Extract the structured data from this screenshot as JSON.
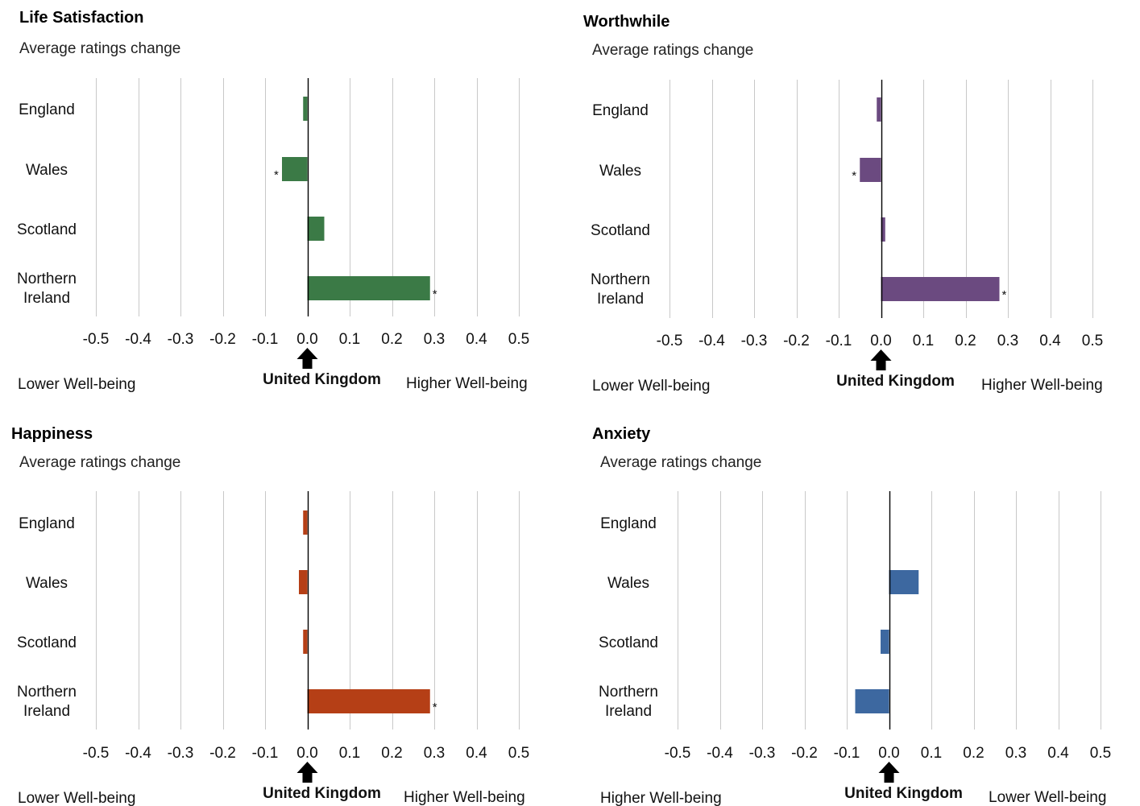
{
  "chart_data": [
    {
      "type": "bar",
      "orientation": "horizontal",
      "title": "Life Satisfaction",
      "subtitle": "Average ratings change",
      "categories": [
        "England",
        "Wales",
        "Scotland",
        "Northern Ireland"
      ],
      "values": [
        -0.01,
        -0.06,
        0.04,
        0.29
      ],
      "significant": [
        false,
        true,
        false,
        true
      ],
      "color": "#3b7a46",
      "xlim": [
        -0.5,
        0.5
      ],
      "xticks": [
        "-0.5",
        "-0.4",
        "-0.3",
        "-0.2",
        "-0.1",
        "0.0",
        "0.1",
        "0.2",
        "0.3",
        "0.4",
        "0.5"
      ],
      "grid": true,
      "reference_label": "United Kingdom",
      "left_label": "Lower Well-being",
      "right_label": "Higher Well-being"
    },
    {
      "type": "bar",
      "orientation": "horizontal",
      "title": "Worthwhile",
      "subtitle": "Average ratings change",
      "categories": [
        "England",
        "Wales",
        "Scotland",
        "Northern Ireland"
      ],
      "values": [
        -0.01,
        -0.05,
        0.01,
        0.28
      ],
      "significant": [
        false,
        true,
        false,
        true
      ],
      "color": "#6b4a80",
      "xlim": [
        -0.5,
        0.5
      ],
      "xticks": [
        "-0.5",
        "-0.4",
        "-0.3",
        "-0.2",
        "-0.1",
        "0.0",
        "0.1",
        "0.2",
        "0.3",
        "0.4",
        "0.5"
      ],
      "grid": true,
      "reference_label": "United Kingdom",
      "left_label": "Lower Well-being",
      "right_label": "Higher Well-being"
    },
    {
      "type": "bar",
      "orientation": "horizontal",
      "title": "Happiness",
      "subtitle": "Average ratings change",
      "categories": [
        "England",
        "Wales",
        "Scotland",
        "Northern Ireland"
      ],
      "values": [
        -0.01,
        -0.02,
        -0.01,
        0.29
      ],
      "significant": [
        false,
        false,
        false,
        true
      ],
      "color": "#b53f16",
      "xlim": [
        -0.5,
        0.5
      ],
      "xticks": [
        "-0.5",
        "-0.4",
        "-0.3",
        "-0.2",
        "-0.1",
        "0.0",
        "0.1",
        "0.2",
        "0.3",
        "0.4",
        "0.5"
      ],
      "grid": true,
      "reference_label": "United Kingdom",
      "left_label": "Lower Well-being",
      "right_label": "Higher Well-being"
    },
    {
      "type": "bar",
      "orientation": "horizontal",
      "title": "Anxiety",
      "subtitle": "Average ratings change",
      "categories": [
        "England",
        "Wales",
        "Scotland",
        "Northern Ireland"
      ],
      "values": [
        0.0,
        0.07,
        -0.02,
        -0.08
      ],
      "significant": [
        false,
        false,
        false,
        false
      ],
      "color": "#3d68a0",
      "xlim": [
        -0.5,
        0.5
      ],
      "xticks": [
        "-0.5",
        "-0.4",
        "-0.3",
        "-0.2",
        "-0.1",
        "0.0",
        "0.1",
        "0.2",
        "0.3",
        "0.4",
        "0.5"
      ],
      "grid": true,
      "reference_label": "United Kingdom",
      "left_label": "Higher Well-being",
      "right_label": "Lower Well-being"
    }
  ]
}
